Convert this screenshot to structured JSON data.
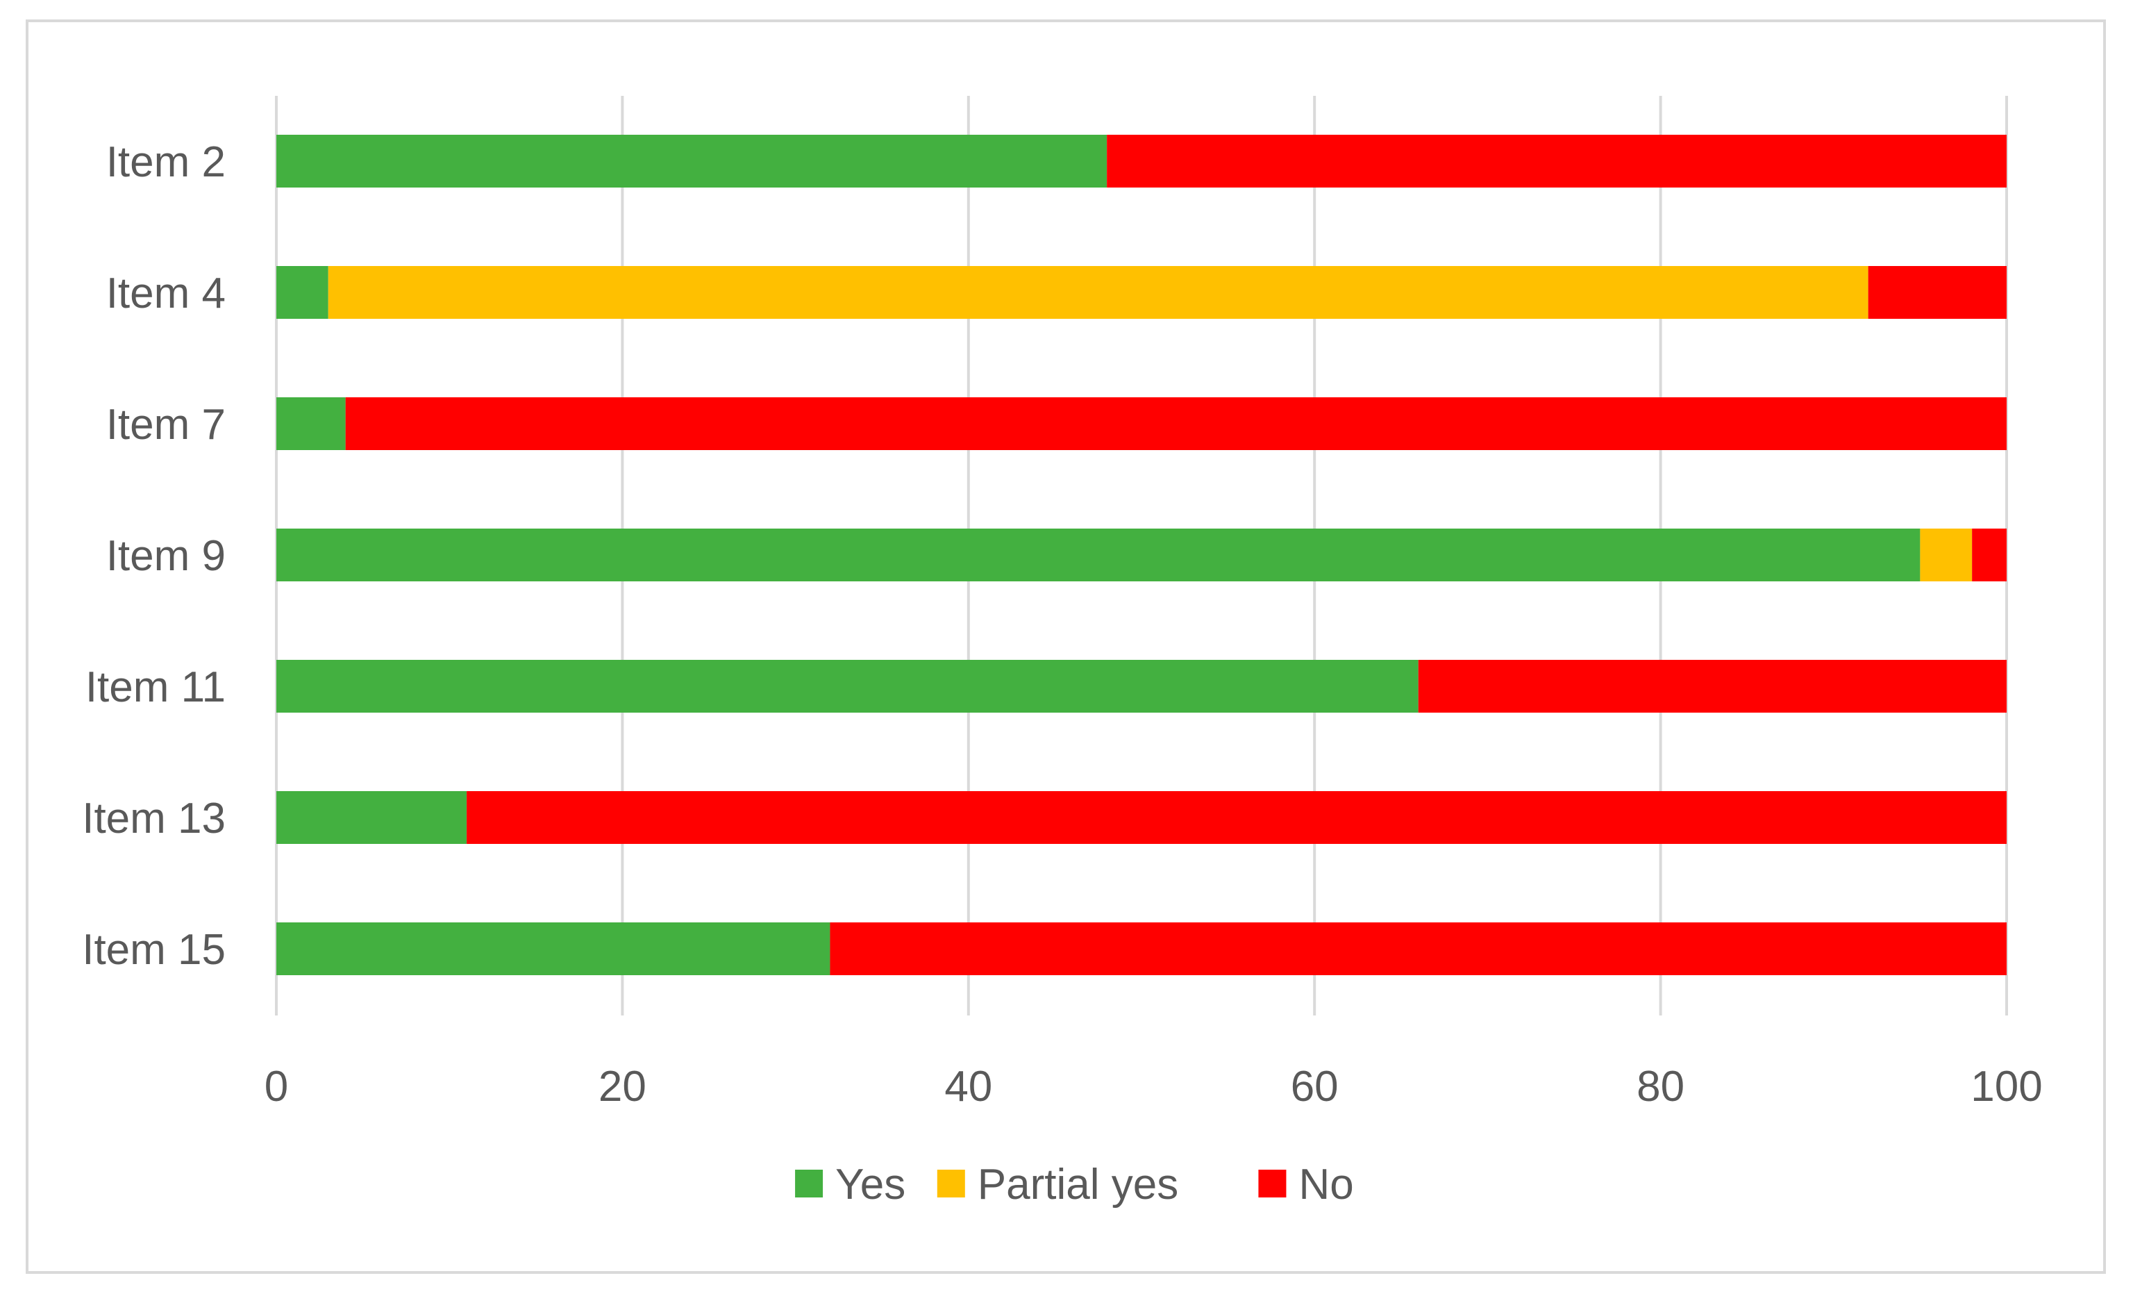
{
  "chart_data": {
    "type": "bar",
    "orientation": "horizontal",
    "stacked": true,
    "title": "",
    "xlabel": "",
    "ylabel": "",
    "categories": [
      "Item 2",
      "Item 4",
      "Item 7",
      "Item 9",
      "Item 11",
      "Item 13",
      "Item 15"
    ],
    "series": [
      {
        "name": "Yes",
        "color": "#43b040",
        "values": [
          48,
          3,
          4,
          95,
          66,
          11,
          32
        ]
      },
      {
        "name": "Partial yes",
        "color": "#ffc000",
        "values": [
          0,
          89,
          0,
          3,
          0,
          0,
          0
        ]
      },
      {
        "name": "No",
        "color": "#ff0000",
        "values": [
          52,
          8,
          96,
          2,
          34,
          89,
          68
        ]
      }
    ],
    "xlim": [
      0,
      100
    ],
    "xticks": [
      "0",
      "20",
      "40",
      "60",
      "80",
      "100"
    ],
    "grid": true,
    "legend_position": "bottom"
  }
}
